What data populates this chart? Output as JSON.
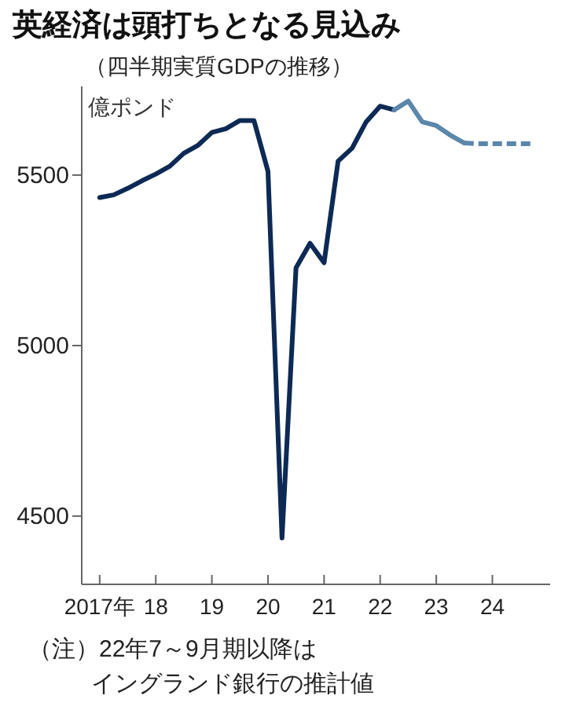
{
  "chart_data": {
    "type": "line",
    "title": "英経済は頭打ちとなる見込み",
    "subtitle": "（四半期実質GDPの推移）",
    "ylabel": "億ポンド",
    "annotations": [
      "（注）22年7～9月期以降は",
      "イングランド銀行の推計値"
    ],
    "x": [
      2017,
      2017.25,
      2017.5,
      2017.75,
      2018,
      2018.25,
      2018.5,
      2018.75,
      2019,
      2019.25,
      2019.5,
      2019.75,
      2020,
      2020.25,
      2020.5,
      2020.75,
      2021,
      2021.25,
      2021.5,
      2021.75,
      2022,
      2022.25,
      2022.5,
      2022.75,
      2023,
      2023.25,
      2023.5,
      2023.75,
      2024,
      2024.25,
      2024.5,
      2024.75
    ],
    "series": [
      {
        "color": "#0d2a55",
        "line_style": "solid",
        "values": [
          5434,
          5442,
          5461,
          5483,
          5503,
          5526,
          5564,
          5587,
          5625,
          5636,
          5660,
          5660,
          5511,
          4436,
          5228,
          5300,
          5243,
          5541,
          5579,
          5656,
          5702,
          5691,
          null,
          null,
          null,
          null,
          null,
          null,
          null,
          null,
          null,
          null
        ]
      },
      {
        "color": "#5b87aa",
        "line_style": "solid",
        "values": [
          null,
          null,
          null,
          null,
          null,
          null,
          null,
          null,
          null,
          null,
          null,
          null,
          null,
          null,
          null,
          null,
          null,
          null,
          null,
          null,
          null,
          5691,
          5717,
          5656,
          5645,
          5617,
          5594,
          null,
          null,
          null,
          null,
          null
        ]
      },
      {
        "color": "#5b87aa",
        "line_style": "dashed",
        "values": [
          null,
          null,
          null,
          null,
          null,
          null,
          null,
          null,
          null,
          null,
          null,
          null,
          null,
          null,
          null,
          null,
          null,
          null,
          null,
          null,
          null,
          null,
          null,
          null,
          null,
          null,
          5594,
          5592,
          5592,
          5592,
          5592,
          5592
        ]
      }
    ],
    "xlim": [
      2016.68,
      2025.03
    ],
    "ylim": [
      4300,
      5760
    ],
    "xticks": [
      {
        "value": 2017,
        "label": "2017年"
      },
      {
        "value": 2018,
        "label": "18"
      },
      {
        "value": 2019,
        "label": "19"
      },
      {
        "value": 2020,
        "label": "20"
      },
      {
        "value": 2021,
        "label": "21"
      },
      {
        "value": 2022,
        "label": "22"
      },
      {
        "value": 2023,
        "label": "23"
      },
      {
        "value": 2024,
        "label": "24"
      }
    ],
    "yticks": [
      4500,
      5000,
      5500
    ],
    "grid": false,
    "marker": "none"
  }
}
